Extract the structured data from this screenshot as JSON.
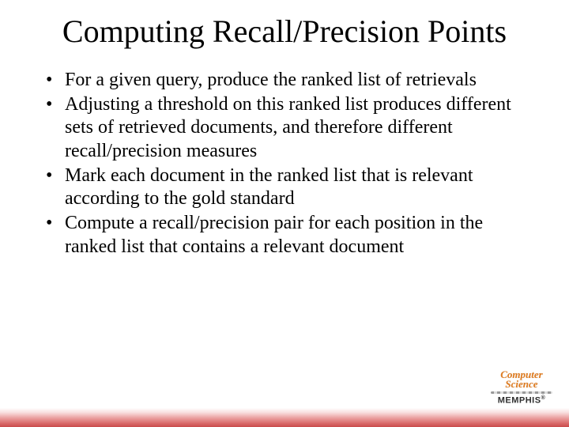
{
  "title_text": "Computing Recall/Precision Points",
  "title_fontsize": 40,
  "title_color": "#000000",
  "body_fontsize": 24,
  "body_color": "#000000",
  "background_color": "#ffffff",
  "bullets": [
    "For a given query, produce the ranked list of retrievals",
    "Adjusting a threshold on this ranked list produces different sets of retrieved documents, and therefore different recall/precision measures",
    "Mark each document in the ranked list that is relevant according to the gold standard",
    "Compute a recall/precision pair for each position in the ranked list that contains a relevant document"
  ],
  "footer_gradient": {
    "from": "#ffffff",
    "to": "#c94a4a"
  },
  "logo": {
    "line1": "Computer",
    "line2": "Science",
    "bottom": "MEMPHIS",
    "top_color": "#e07b1e",
    "bottom_color": "#2f2f2f"
  }
}
